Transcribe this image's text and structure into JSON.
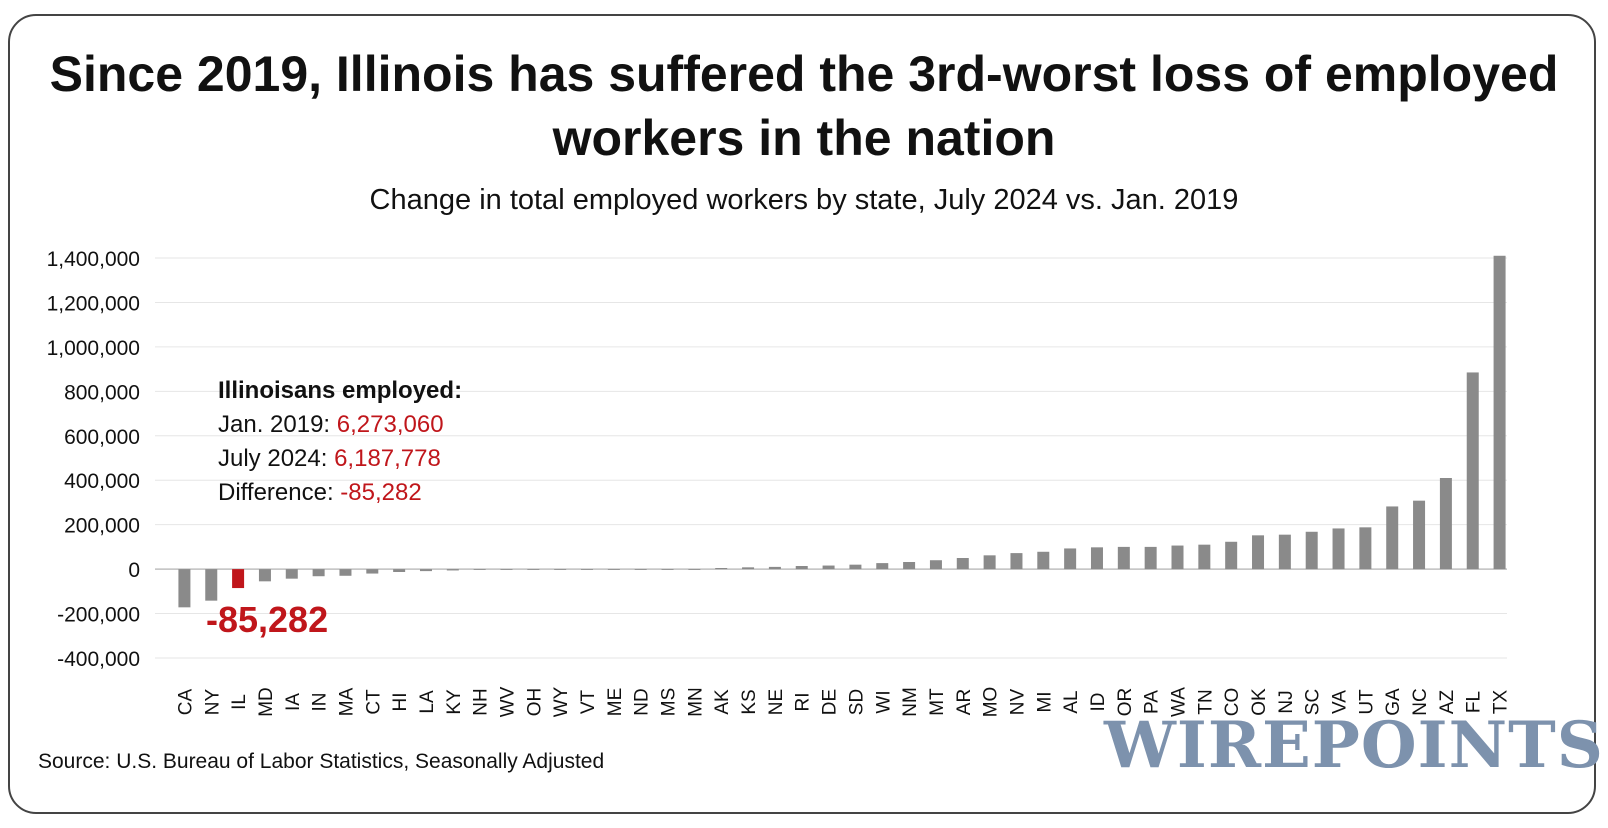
{
  "title": "Since 2019, Illinois has suffered the 3rd-worst loss of employed workers in the nation",
  "subtitle": "Change in total employed workers by state, July 2024 vs. Jan. 2019",
  "source": "Source: U.S. Bureau of Labor Statistics, Seasonally Adjusted",
  "brand": "WIREPOINTS",
  "annotation": {
    "heading": "Illinoisans employed:",
    "jan_label": "Jan. 2019: ",
    "jan_value": "6,273,060",
    "jul_label": "July 2024: ",
    "jul_value": "6,187,778",
    "diff_label": "Difference: ",
    "diff_value": "-85,282",
    "bar_label": "-85,282"
  },
  "colors": {
    "bar": "#8a8a8a",
    "highlight": "#c0161b",
    "grid": "#e6e6e6",
    "axis": "#bfbfbf"
  },
  "chart_data": {
    "type": "bar",
    "title": "Since 2019, Illinois has suffered the 3rd-worst loss of employed workers in the nation",
    "subtitle": "Change in total employed workers by state, July 2024 vs. Jan. 2019",
    "ylim": [
      -400000,
      1400000
    ],
    "yticks": [
      -400000,
      -200000,
      0,
      200000,
      400000,
      600000,
      800000,
      1000000,
      1200000,
      1400000
    ],
    "ytick_labels": [
      "-400,000",
      "-200,000",
      "0",
      "200,000",
      "400,000",
      "600,000",
      "800,000",
      "1,000,000",
      "1,200,000",
      "1,400,000"
    ],
    "grid": true,
    "highlight_category": "IL",
    "categories": [
      "CA",
      "NY",
      "IL",
      "MD",
      "IA",
      "IN",
      "MA",
      "CT",
      "HI",
      "LA",
      "KY",
      "NH",
      "WV",
      "OH",
      "WY",
      "VT",
      "ME",
      "ND",
      "MS",
      "MN",
      "AK",
      "KS",
      "NE",
      "RI",
      "DE",
      "SD",
      "WI",
      "NM",
      "MT",
      "AR",
      "MO",
      "NV",
      "MI",
      "AL",
      "ID",
      "OR",
      "PA",
      "WA",
      "TN",
      "CO",
      "OK",
      "NJ",
      "SC",
      "VA",
      "UT",
      "GA",
      "NC",
      "AZ",
      "FL",
      "TX"
    ],
    "values": [
      -172000,
      -142000,
      -85282,
      -55000,
      -43000,
      -32000,
      -30000,
      -20000,
      -13000,
      -9000,
      -6000,
      -3000,
      -2500,
      -2000,
      -1500,
      -1000,
      -800,
      -600,
      -400,
      -200,
      5000,
      8000,
      10000,
      14000,
      16000,
      20000,
      27000,
      32000,
      40000,
      50000,
      62000,
      72000,
      78000,
      93000,
      98000,
      100000,
      100000,
      106000,
      110000,
      123000,
      152000,
      155000,
      168000,
      183000,
      188000,
      282000,
      308000,
      410000,
      885000,
      1410000
    ]
  }
}
